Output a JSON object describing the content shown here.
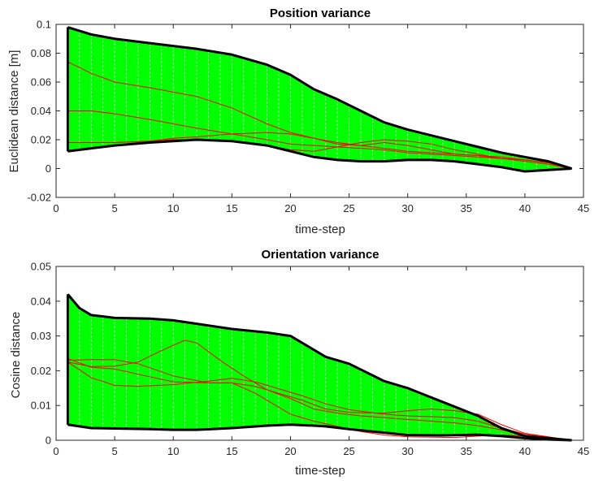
{
  "chart_data": [
    {
      "type": "area",
      "title": "Position variance",
      "xlabel": "time-step",
      "ylabel": "Euclidean distance [m]",
      "xlim": [
        0,
        45
      ],
      "ylim": [
        -0.02,
        0.1
      ],
      "xticks": [
        "0",
        "5",
        "10",
        "15",
        "20",
        "25",
        "30",
        "35",
        "40",
        "45"
      ],
      "yticks": [
        "-0.02",
        "0",
        "0.02",
        "0.04",
        "0.06",
        "0.08",
        "0.1"
      ],
      "grid": false,
      "colors": {
        "band_fill": "#00ff00",
        "bound_line": "#000000",
        "trajectory_line": "#ff0000",
        "step_line": "#d8d8d8"
      },
      "band": {
        "x": [
          1,
          3,
          5,
          8,
          10,
          12,
          15,
          18,
          20,
          22,
          24,
          26,
          28,
          30,
          32,
          34,
          36,
          38,
          40,
          42,
          44
        ],
        "upper": [
          0.098,
          0.093,
          0.09,
          0.087,
          0.085,
          0.083,
          0.079,
          0.072,
          0.065,
          0.055,
          0.048,
          0.04,
          0.032,
          0.027,
          0.023,
          0.019,
          0.015,
          0.011,
          0.008,
          0.005,
          0
        ],
        "lower": [
          0.012,
          0.014,
          0.016,
          0.018,
          0.019,
          0.02,
          0.019,
          0.016,
          0.012,
          0.008,
          0.006,
          0.005,
          0.005,
          0.006,
          0.006,
          0.005,
          0.003,
          0.001,
          -0.002,
          -0.001,
          0
        ]
      },
      "series": [
        {
          "x": [
            1,
            3,
            5,
            8,
            10,
            12,
            15,
            18,
            20,
            22,
            24,
            26,
            28,
            30,
            32,
            34,
            36,
            38,
            40,
            42,
            44
          ],
          "values": [
            0.074,
            0.066,
            0.06,
            0.056,
            0.053,
            0.05,
            0.042,
            0.031,
            0.025,
            0.021,
            0.018,
            0.016,
            0.014,
            0.012,
            0.011,
            0.01,
            0.009,
            0.007,
            0.006,
            0.004,
            0
          ]
        },
        {
          "x": [
            1,
            3,
            5,
            8,
            10,
            12,
            15,
            18,
            20,
            22,
            24,
            26,
            28,
            30,
            32,
            34,
            36,
            38,
            40,
            42,
            44
          ],
          "values": [
            0.04,
            0.04,
            0.038,
            0.034,
            0.031,
            0.028,
            0.024,
            0.02,
            0.017,
            0.016,
            0.015,
            0.014,
            0.013,
            0.011,
            0.01,
            0.009,
            0.008,
            0.007,
            0.006,
            0.004,
            0
          ]
        },
        {
          "x": [
            1,
            3,
            5,
            8,
            10,
            12,
            15,
            18,
            20,
            22,
            24,
            26,
            28,
            30,
            32,
            34,
            36,
            38,
            40,
            42,
            44
          ],
          "values": [
            0.018,
            0.018,
            0.018,
            0.019,
            0.021,
            0.022,
            0.024,
            0.025,
            0.024,
            0.021,
            0.017,
            0.016,
            0.018,
            0.016,
            0.013,
            0.01,
            0.009,
            0.008,
            0.006,
            0.004,
            0
          ]
        },
        {
          "x": [
            1,
            3,
            5,
            8,
            10,
            12,
            15,
            18,
            20,
            22,
            24,
            26,
            28,
            30,
            32,
            34,
            36,
            38,
            40,
            42,
            44
          ],
          "values": [
            0.018,
            0.018,
            0.018,
            0.019,
            0.02,
            0.02,
            0.019,
            0.016,
            0.013,
            0.012,
            0.015,
            0.018,
            0.02,
            0.019,
            0.017,
            0.013,
            0.01,
            0.007,
            0.005,
            0.003,
            0
          ]
        }
      ]
    },
    {
      "type": "area",
      "title": "Orientation variance",
      "xlabel": "time-step",
      "ylabel": "Cosine distance",
      "xlim": [
        0,
        45
      ],
      "ylim": [
        0,
        0.05
      ],
      "xticks": [
        "0",
        "5",
        "10",
        "15",
        "20",
        "25",
        "30",
        "35",
        "40",
        "45"
      ],
      "yticks": [
        "0",
        "0.01",
        "0.02",
        "0.03",
        "0.04",
        "0.05"
      ],
      "grid": false,
      "colors": {
        "band_fill": "#00ff00",
        "bound_line": "#000000",
        "trajectory_line": "#ff0000",
        "step_line": "#d8d8d8"
      },
      "band": {
        "x": [
          1,
          2,
          3,
          5,
          8,
          10,
          12,
          15,
          18,
          20,
          22,
          23,
          25,
          28,
          30,
          33,
          36,
          38,
          40,
          42,
          44
        ],
        "upper": [
          0.042,
          0.038,
          0.036,
          0.0352,
          0.035,
          0.0345,
          0.0335,
          0.032,
          0.031,
          0.03,
          0.026,
          0.024,
          0.022,
          0.017,
          0.015,
          0.011,
          0.007,
          0.0035,
          0.0012,
          0.0006,
          0
        ],
        "lower": [
          0.0045,
          0.004,
          0.0035,
          0.0034,
          0.0032,
          0.003,
          0.003,
          0.0035,
          0.0042,
          0.0045,
          0.0042,
          0.004,
          0.0032,
          0.0022,
          0.0015,
          0.0014,
          0.0016,
          0.0012,
          0.0006,
          0.0002,
          0
        ]
      },
      "series": [
        {
          "x": [
            1,
            3,
            5,
            7,
            9,
            11,
            12,
            14,
            16,
            18,
            20,
            22,
            24,
            26,
            28,
            30,
            32,
            34,
            36,
            38,
            40,
            42,
            44
          ],
          "values": [
            0.0225,
            0.0212,
            0.0213,
            0.0225,
            0.0258,
            0.0288,
            0.028,
            0.023,
            0.0185,
            0.0145,
            0.012,
            0.009,
            0.0078,
            0.007,
            0.0065,
            0.006,
            0.0055,
            0.005,
            0.0042,
            0.003,
            0.0015,
            0.0008,
            0
          ]
        },
        {
          "x": [
            1,
            3,
            5,
            7,
            10,
            13,
            15,
            17,
            19,
            21,
            23,
            25,
            28,
            30,
            32,
            34,
            36,
            38,
            40,
            42,
            44
          ],
          "values": [
            0.023,
            0.0232,
            0.0232,
            0.022,
            0.0185,
            0.0165,
            0.0165,
            0.0155,
            0.0135,
            0.0115,
            0.009,
            0.008,
            0.0078,
            0.0085,
            0.009,
            0.0085,
            0.0075,
            0.0045,
            0.002,
            0.001,
            0
          ]
        },
        {
          "x": [
            1,
            3,
            5,
            7,
            10,
            13,
            15,
            17,
            19,
            21,
            23,
            25,
            28,
            30,
            32,
            34,
            36,
            38,
            40,
            42,
            44
          ],
          "values": [
            0.0225,
            0.018,
            0.0158,
            0.0155,
            0.016,
            0.017,
            0.0178,
            0.0168,
            0.0148,
            0.0128,
            0.0105,
            0.0088,
            0.0075,
            0.007,
            0.0068,
            0.0065,
            0.0055,
            0.0035,
            0.0018,
            0.0009,
            0
          ]
        },
        {
          "x": [
            1,
            3,
            5,
            7,
            10,
            13,
            15,
            17,
            19,
            20,
            22,
            24,
            26,
            28,
            30,
            32,
            34,
            36,
            38,
            40,
            42,
            44
          ],
          "values": [
            0.0235,
            0.021,
            0.0205,
            0.019,
            0.0168,
            0.0165,
            0.0165,
            0.0135,
            0.0095,
            0.0075,
            0.0055,
            0.004,
            0.0025,
            0.0015,
            0.001,
            0.0009,
            0.0008,
            0.0012,
            0.0015,
            0.0012,
            0.0006,
            0
          ]
        }
      ]
    }
  ]
}
